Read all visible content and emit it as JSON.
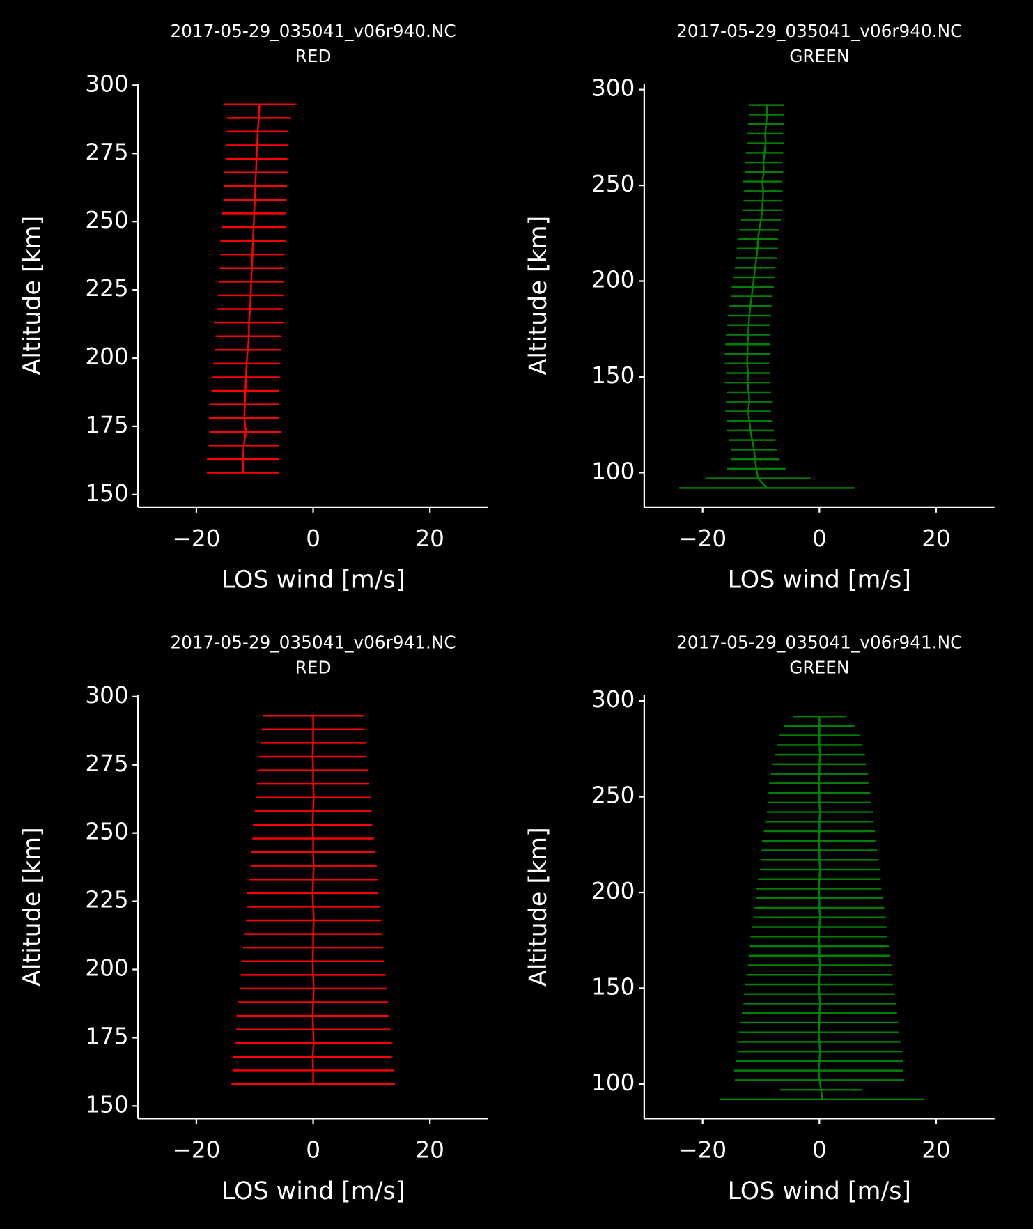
{
  "chart_data": [
    {
      "type": "errorbar",
      "title": "2017-05-29_035041_v06r940.NC",
      "subtitle": "RED",
      "xlabel": "LOS wind [m/s]",
      "ylabel": "Altitude [km]",
      "color": "#ff0000",
      "xlim": [
        -30,
        30
      ],
      "xticks": [
        {
          "value": -20,
          "label": "−20"
        },
        0,
        20
      ],
      "ylim": [
        145.4,
        300.5
      ],
      "yticks": [
        150,
        175,
        200,
        225,
        250,
        275,
        300
      ],
      "y": [
        158,
        163,
        168,
        173,
        178,
        183,
        188,
        193,
        198,
        203,
        208,
        213,
        218,
        223,
        228,
        233,
        238,
        243,
        248,
        253,
        258,
        263,
        268,
        273,
        278,
        283,
        288,
        293
      ],
      "values": [
        -12.0,
        -12.0,
        -11.9,
        -11.5,
        -11.8,
        -11.7,
        -11.6,
        -11.5,
        -11.4,
        -11.2,
        -11.0,
        -11.0,
        -10.8,
        -10.7,
        -10.6,
        -10.5,
        -10.4,
        -10.3,
        -10.2,
        -10.1,
        -10.0,
        -9.9,
        -9.8,
        -9.7,
        -9.6,
        -9.5,
        -9.3,
        -9.2
      ],
      "errors": [
        6.2,
        6.2,
        6.0,
        6.1,
        6.0,
        5.9,
        5.8,
        5.8,
        5.7,
        5.7,
        5.6,
        6.0,
        5.6,
        5.6,
        5.6,
        5.5,
        5.5,
        5.6,
        5.5,
        5.5,
        5.4,
        5.4,
        5.4,
        5.3,
        5.3,
        5.3,
        5.5,
        6.2
      ]
    },
    {
      "type": "errorbar",
      "title": "2017-05-29_035041_v06r940.NC",
      "subtitle": "GREEN",
      "xlabel": "LOS wind [m/s]",
      "ylabel": "Altitude [km]",
      "color": "#008000",
      "xlim": [
        -30,
        30
      ],
      "xticks": [
        {
          "value": -20,
          "label": "−20"
        },
        0,
        20
      ],
      "ylim": [
        82,
        303
      ],
      "yticks": [
        100,
        150,
        200,
        250,
        300
      ],
      "y": [
        92,
        97,
        102,
        107,
        112,
        117,
        122,
        127,
        132,
        137,
        142,
        147,
        152,
        157,
        162,
        167,
        172,
        177,
        182,
        187,
        192,
        197,
        202,
        207,
        212,
        217,
        222,
        227,
        232,
        237,
        242,
        247,
        252,
        257,
        262,
        267,
        272,
        277,
        282,
        287,
        292
      ],
      "values": [
        -9.0,
        -10.5,
        -10.8,
        -11.0,
        -11.2,
        -11.5,
        -11.8,
        -12.0,
        -12.2,
        -12.0,
        -12.1,
        -12.3,
        -12.2,
        -12.4,
        -12.3,
        -12.3,
        -12.2,
        -12.1,
        -12.0,
        -11.8,
        -11.6,
        -11.4,
        -11.2,
        -11.0,
        -10.8,
        -10.6,
        -10.5,
        -10.3,
        -10.0,
        -9.8,
        -9.7,
        -9.6,
        -9.8,
        -9.5,
        -9.6,
        -9.4,
        -9.2,
        -9.3,
        -9.1,
        -9.0,
        -9.0
      ],
      "errors": [
        15.0,
        9.0,
        5.0,
        4.2,
        4.0,
        4.0,
        4.0,
        3.9,
        3.9,
        4.0,
        3.8,
        3.9,
        3.8,
        3.8,
        3.9,
        3.8,
        3.8,
        3.7,
        3.7,
        3.6,
        3.6,
        3.6,
        3.5,
        3.5,
        3.5,
        3.5,
        3.4,
        3.4,
        3.4,
        3.4,
        3.3,
        3.3,
        3.3,
        3.3,
        3.2,
        3.2,
        3.2,
        3.1,
        3.1,
        3.0,
        3.0
      ]
    },
    {
      "type": "errorbar",
      "title": "2017-05-29_035041_v06r941.NC",
      "subtitle": "RED",
      "xlabel": "LOS wind [m/s]",
      "ylabel": "Altitude [km]",
      "color": "#ff0000",
      "xlim": [
        -30,
        30
      ],
      "xticks": [
        {
          "value": -20,
          "label": "−20"
        },
        0,
        20
      ],
      "ylim": [
        145.4,
        300.5
      ],
      "yticks": [
        150,
        175,
        200,
        225,
        250,
        275,
        300
      ],
      "y": [
        158,
        163,
        168,
        173,
        178,
        183,
        188,
        193,
        198,
        203,
        208,
        213,
        218,
        223,
        228,
        233,
        238,
        243,
        248,
        253,
        258,
        263,
        268,
        273,
        278,
        283,
        288,
        293
      ],
      "values": [
        0.0,
        0.0,
        -0.1,
        0.1,
        0.0,
        -0.1,
        0.0,
        0.1,
        0.0,
        -0.1,
        0.0,
        0.0,
        0.1,
        0.0,
        -0.1,
        0.0,
        0.1,
        0.0,
        0.0,
        -0.1,
        0.0,
        0.1,
        0.0,
        0.0,
        -0.1,
        0.0,
        0.0,
        0.0
      ],
      "errors": [
        14.0,
        13.8,
        13.6,
        13.4,
        13.2,
        13.0,
        12.8,
        12.6,
        12.4,
        12.2,
        12.0,
        11.8,
        11.6,
        11.4,
        11.2,
        11.0,
        10.8,
        10.6,
        10.4,
        10.2,
        10.0,
        9.8,
        9.6,
        9.4,
        9.2,
        9.0,
        8.8,
        8.6
      ]
    },
    {
      "type": "errorbar",
      "title": "2017-05-29_035041_v06r941.NC",
      "subtitle": "GREEN",
      "xlabel": "LOS wind [m/s]",
      "ylabel": "Altitude [km]",
      "color": "#008000",
      "xlim": [
        -30,
        30
      ],
      "xticks": [
        {
          "value": -20,
          "label": "−20"
        },
        0,
        20
      ],
      "ylim": [
        82,
        303
      ],
      "yticks": [
        100,
        150,
        200,
        250,
        300
      ],
      "y": [
        92,
        97,
        102,
        107,
        112,
        117,
        122,
        127,
        132,
        137,
        142,
        147,
        152,
        157,
        162,
        167,
        172,
        177,
        182,
        187,
        192,
        197,
        202,
        207,
        212,
        217,
        222,
        227,
        232,
        237,
        242,
        247,
        252,
        257,
        262,
        267,
        272,
        277,
        282,
        287,
        292
      ],
      "values": [
        0.5,
        0.3,
        0.0,
        -0.1,
        0.0,
        0.1,
        0.0,
        -0.1,
        0.0,
        0.0,
        0.1,
        0.0,
        -0.1,
        0.0,
        0.1,
        0.0,
        0.0,
        -0.1,
        0.0,
        0.1,
        0.0,
        0.0,
        -0.1,
        0.0,
        0.1,
        0.0,
        0.0,
        -0.1,
        0.0,
        0.0,
        0.1,
        0.0,
        0.0,
        -0.1,
        0.0,
        0.0,
        0.1,
        0.0,
        0.0,
        0.0,
        0.0
      ],
      "errors": [
        17.5,
        7.0,
        14.5,
        14.5,
        14.3,
        14.1,
        13.9,
        13.7,
        13.5,
        13.3,
        13.1,
        12.9,
        12.7,
        12.5,
        12.3,
        12.1,
        11.9,
        11.7,
        11.5,
        11.3,
        11.1,
        10.9,
        10.7,
        10.5,
        10.3,
        10.1,
        9.9,
        9.7,
        9.5,
        9.3,
        9.1,
        8.9,
        8.7,
        8.5,
        8.3,
        8.0,
        7.7,
        7.3,
        6.9,
        6.0,
        4.5
      ]
    }
  ]
}
